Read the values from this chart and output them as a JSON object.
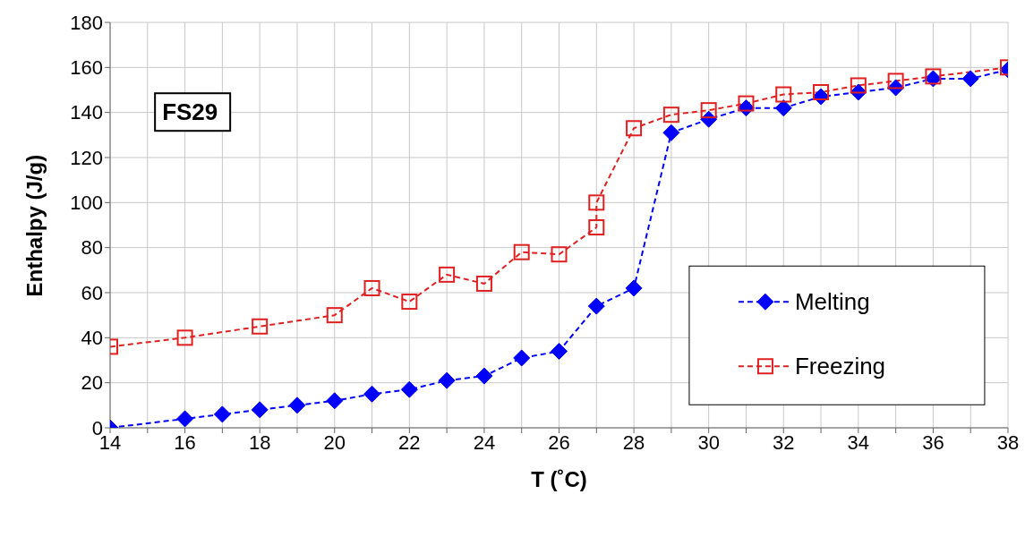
{
  "chart_data": {
    "type": "line",
    "xlabel": "T (˚C)",
    "ylabel": "Enthalpy (J/g)",
    "annotations": [
      "FS29"
    ],
    "xlim": [
      14,
      38
    ],
    "xticks": [
      14,
      {
        "value": 15,
        "label": null
      },
      16,
      {
        "value": 17,
        "label": null
      },
      18,
      {
        "value": 19,
        "label": null
      },
      20,
      {
        "value": 21,
        "label": null
      },
      22,
      {
        "value": 23,
        "label": null
      },
      24,
      {
        "value": 25,
        "label": null
      },
      26,
      {
        "value": 27,
        "label": null
      },
      28,
      {
        "value": 29,
        "label": null
      },
      30,
      {
        "value": 31,
        "label": null
      },
      32,
      {
        "value": 33,
        "label": null
      },
      34,
      {
        "value": 35,
        "label": null
      },
      36,
      {
        "value": 37,
        "label": null
      },
      38
    ],
    "ylim": [
      0,
      180
    ],
    "yticks": [
      0,
      20,
      40,
      60,
      80,
      100,
      120,
      140,
      160,
      180
    ],
    "grid": true,
    "legend": "bottom right",
    "line_style": "dashed",
    "series": [
      {
        "name": "Melting",
        "color": "#0000ff",
        "marker": "diamond",
        "x": [
          14,
          16,
          17,
          18,
          19,
          20,
          21,
          22,
          23,
          24,
          25,
          26,
          27,
          28,
          29,
          30,
          31,
          32,
          33,
          34,
          35,
          36,
          37,
          38
        ],
        "values": [
          0,
          4,
          6,
          8,
          10,
          12,
          15,
          17,
          21,
          23,
          31,
          34,
          54,
          62,
          131,
          137,
          142,
          142,
          147,
          149,
          151,
          155,
          155,
          159
        ]
      },
      {
        "name": "Freezing",
        "color": "#e02020",
        "marker": "square",
        "x": [
          14,
          16,
          18,
          20,
          21,
          22,
          23,
          24,
          25,
          26,
          27,
          27,
          28,
          29,
          30,
          31,
          32,
          33,
          34,
          35,
          36,
          38
        ],
        "values": [
          36,
          40,
          45,
          50,
          62,
          56,
          68,
          64,
          78,
          77,
          89,
          100,
          133,
          139,
          141,
          144,
          148,
          149,
          152,
          154,
          156,
          160
        ]
      }
    ]
  }
}
